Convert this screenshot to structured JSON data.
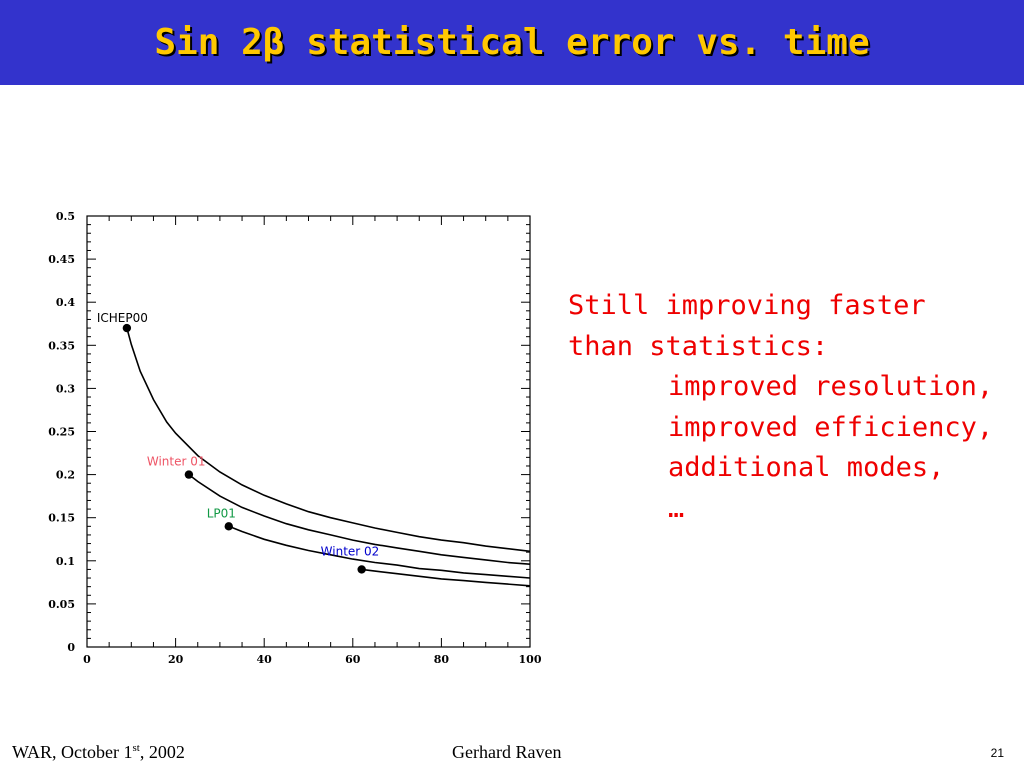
{
  "slide": {
    "title": "Sin 2β statistical error vs. time",
    "footer": {
      "event": "WAR, October 1",
      "event_sup": "st",
      "event_year": ", 2002",
      "author": "Gerhard Raven",
      "page_number": "21"
    },
    "bullets": {
      "line1": "Still improving faster",
      "line2": "than statistics:",
      "items": [
        "improved resolution,",
        "improved efficiency,",
        "additional modes,",
        "…"
      ]
    }
  },
  "chart_data": {
    "type": "line",
    "title": "",
    "xlabel": "",
    "ylabel": "",
    "xlim": [
      0,
      100
    ],
    "ylim": [
      0,
      0.5
    ],
    "x_ticks": [
      0,
      20,
      40,
      60,
      80,
      100
    ],
    "y_ticks": [
      0,
      0.05,
      0.1,
      0.15,
      0.2,
      0.25,
      0.3,
      0.35,
      0.4,
      0.45,
      0.5
    ],
    "grid": false,
    "points": [
      {
        "label": "ICHEP00",
        "x": 9,
        "y": 0.37,
        "color": "#000000"
      },
      {
        "label": "Winter 01",
        "x": 23,
        "y": 0.2,
        "color": "#ee5566"
      },
      {
        "label": "LP01",
        "x": 32,
        "y": 0.14,
        "color": "#119944"
      },
      {
        "label": "Winter 02",
        "x": 62,
        "y": 0.09,
        "color": "#0000cc"
      }
    ],
    "series_curves": [
      {
        "x": [
          9,
          10,
          12,
          15,
          18,
          20,
          25,
          30,
          35,
          40,
          45,
          50,
          55,
          60,
          65,
          70,
          75,
          80,
          85,
          90,
          95,
          100
        ],
        "y": [
          0.37,
          0.351,
          0.32,
          0.287,
          0.261,
          0.248,
          0.222,
          0.203,
          0.188,
          0.176,
          0.166,
          0.157,
          0.15,
          0.144,
          0.138,
          0.133,
          0.128,
          0.124,
          0.121,
          0.117,
          0.114,
          0.111
        ]
      },
      {
        "x": [
          23,
          25,
          30,
          35,
          40,
          45,
          50,
          55,
          60,
          65,
          70,
          75,
          80,
          85,
          90,
          95,
          100
        ],
        "y": [
          0.2,
          0.192,
          0.175,
          0.162,
          0.152,
          0.143,
          0.136,
          0.13,
          0.124,
          0.119,
          0.115,
          0.111,
          0.107,
          0.104,
          0.101,
          0.098,
          0.096
        ]
      },
      {
        "x": [
          32,
          35,
          40,
          45,
          50,
          55,
          60,
          65,
          70,
          75,
          80,
          85,
          90,
          95,
          100
        ],
        "y": [
          0.14,
          0.134,
          0.125,
          0.118,
          0.112,
          0.107,
          0.102,
          0.098,
          0.095,
          0.091,
          0.089,
          0.086,
          0.084,
          0.082,
          0.08
        ]
      },
      {
        "x": [
          62,
          65,
          70,
          75,
          80,
          85,
          90,
          95,
          100
        ],
        "y": [
          0.09,
          0.088,
          0.085,
          0.082,
          0.079,
          0.077,
          0.075,
          0.073,
          0.071
        ]
      }
    ]
  }
}
